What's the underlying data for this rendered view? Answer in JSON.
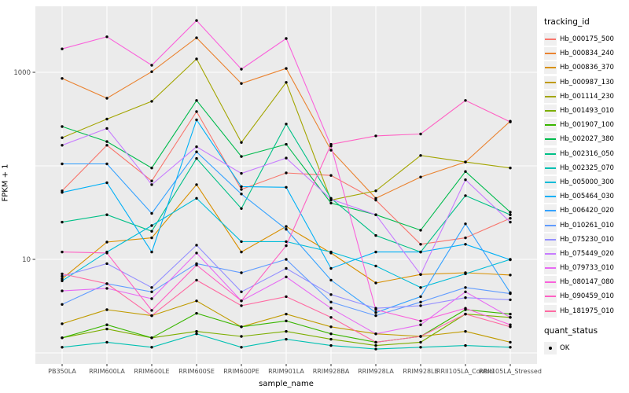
{
  "figure": {
    "x_axis_title": "sample_name",
    "y_axis_title": "FPKM + 1",
    "y_tick_labels": [
      "1000",
      "10"
    ],
    "panel_bg": "#EBEBEB",
    "grid_color": "#FFFFFF",
    "tick_text_color": "#4d4d4d",
    "point_color": "#000000"
  },
  "legend": {
    "tracking_title": "tracking_id",
    "quant_title": "quant_status",
    "quant_items": [
      {
        "label": "OK"
      }
    ]
  },
  "chart_data": {
    "type": "line",
    "title": "",
    "xlabel": "sample_name",
    "ylabel": "FPKM + 1",
    "yscale": "log10",
    "ylim": [
      0.8,
      5000
    ],
    "y_ticks_labeled": [
      10,
      1000
    ],
    "gridline_values": [
      1,
      10,
      100,
      1000
    ],
    "grid": true,
    "legend_position": "right",
    "point_marker": "black-dot",
    "categories": [
      "PB350LA",
      "RRIM600LA",
      "RRIM600LE",
      "RRIM600SE",
      "RRIM600PE",
      "RRIM901LA",
      "RRIM928BA",
      "RRIM928LA",
      "RRIM928LE",
      "RRII105LA_Control",
      "RRII105LA_Stressed"
    ],
    "series": [
      {
        "name": "Hb_000175_500",
        "color": "#F8766D",
        "values": [
          54,
          166,
          69,
          380,
          56,
          84,
          79,
          43,
          14.5,
          17,
          27.5
        ]
      },
      {
        "name": "Hb_000834_240",
        "color": "#EA8331",
        "values": [
          860,
          528,
          1015,
          2340,
          760,
          1100,
          147,
          45,
          76,
          110,
          300
        ]
      },
      {
        "name": "Hb_000836_370",
        "color": "#D89000",
        "values": [
          6.2,
          15.3,
          17,
          63,
          12,
          22.5,
          11.7,
          5.6,
          6.9,
          7.2,
          6.8
        ]
      },
      {
        "name": "Hb_000987_130",
        "color": "#C09B00",
        "values": [
          2.05,
          2.9,
          2.5,
          3.6,
          1.9,
          2.6,
          1.9,
          1.6,
          1.5,
          1.7,
          1.3
        ]
      },
      {
        "name": "Hb_001114_230",
        "color": "#A3A500",
        "values": [
          200,
          316,
          490,
          1390,
          178,
          780,
          43,
          54,
          129,
          110,
          95
        ]
      },
      {
        "name": "Hb_001493_010",
        "color": "#7CAE00",
        "values": [
          1.45,
          1.8,
          1.45,
          1.7,
          1.5,
          1.7,
          1.4,
          1.2,
          1.3,
          2.6,
          2.4
        ]
      },
      {
        "name": "Hb_001907_100",
        "color": "#39B600",
        "values": [
          1.45,
          2.0,
          1.45,
          2.65,
          1.9,
          2.2,
          1.6,
          1.3,
          1.5,
          2.9,
          2.6
        ]
      },
      {
        "name": "Hb_002027_380",
        "color": "#00BB4E",
        "values": [
          263,
          182,
          95,
          500,
          126,
          170,
          40,
          30,
          20.5,
          87,
          32
        ]
      },
      {
        "name": "Hb_002316_050",
        "color": "#00C087",
        "values": [
          25,
          30,
          20,
          120,
          35,
          280,
          45,
          18,
          12,
          48,
          30
        ]
      },
      {
        "name": "Hb_002325_070",
        "color": "#00C0B2",
        "values": [
          1.15,
          1.3,
          1.15,
          1.6,
          1.15,
          1.4,
          1.2,
          1.1,
          1.15,
          1.2,
          1.15
        ]
      },
      {
        "name": "Hb_005000_300",
        "color": "#00BCD8",
        "values": [
          5.9,
          12,
          23,
          45,
          15.5,
          15.5,
          12,
          8.5,
          5,
          7,
          10
        ]
      },
      {
        "name": "Hb_005464_030",
        "color": "#00B0F6",
        "values": [
          52,
          66,
          12,
          310,
          60,
          59,
          8,
          12,
          12,
          14.5,
          9.9
        ]
      },
      {
        "name": "Hb_006420_020",
        "color": "#35A2FF",
        "values": [
          105,
          105,
          31,
          141,
          50,
          21,
          6,
          2.7,
          4,
          24,
          4.4
        ]
      },
      {
        "name": "Hb_010261_010",
        "color": "#619CFF",
        "values": [
          3.3,
          5.5,
          4.5,
          9,
          7.2,
          10,
          3.5,
          2.5,
          3.5,
          5,
          4.3
        ]
      },
      {
        "name": "Hb_075230_010",
        "color": "#9590FF",
        "values": [
          6.6,
          9,
          5,
          14.2,
          4.5,
          8,
          4.2,
          3.0,
          3.2,
          3.9,
          3.7
        ]
      },
      {
        "name": "Hb_075449_020",
        "color": "#C77CFF",
        "values": [
          166,
          251,
          63,
          160,
          83,
          121,
          44,
          30,
          6.9,
          71,
          25
        ]
      },
      {
        "name": "Hb_079733_010",
        "color": "#E76BF3",
        "values": [
          4.6,
          4.9,
          3.8,
          11.7,
          3.6,
          6.5,
          3.0,
          1.6,
          2.0,
          4.5,
          2.4
        ]
      },
      {
        "name": "Hb_080147_080",
        "color": "#FA62DB",
        "values": [
          1780,
          2400,
          1190,
          3580,
          1080,
          2300,
          163,
          2.9,
          2.2,
          3.0,
          2.0
        ]
      },
      {
        "name": "Hb_090459_010",
        "color": "#FF61C3",
        "values": [
          12,
          11.7,
          2.85,
          8.7,
          3.6,
          14,
          170,
          209,
          219,
          500,
          295
        ]
      },
      {
        "name": "Hb_181975_010",
        "color": "#FF6AA2",
        "values": [
          7,
          5.5,
          2.5,
          6,
          3.2,
          4,
          2.4,
          1.3,
          1.5,
          2.6,
          1.9
        ]
      }
    ]
  }
}
